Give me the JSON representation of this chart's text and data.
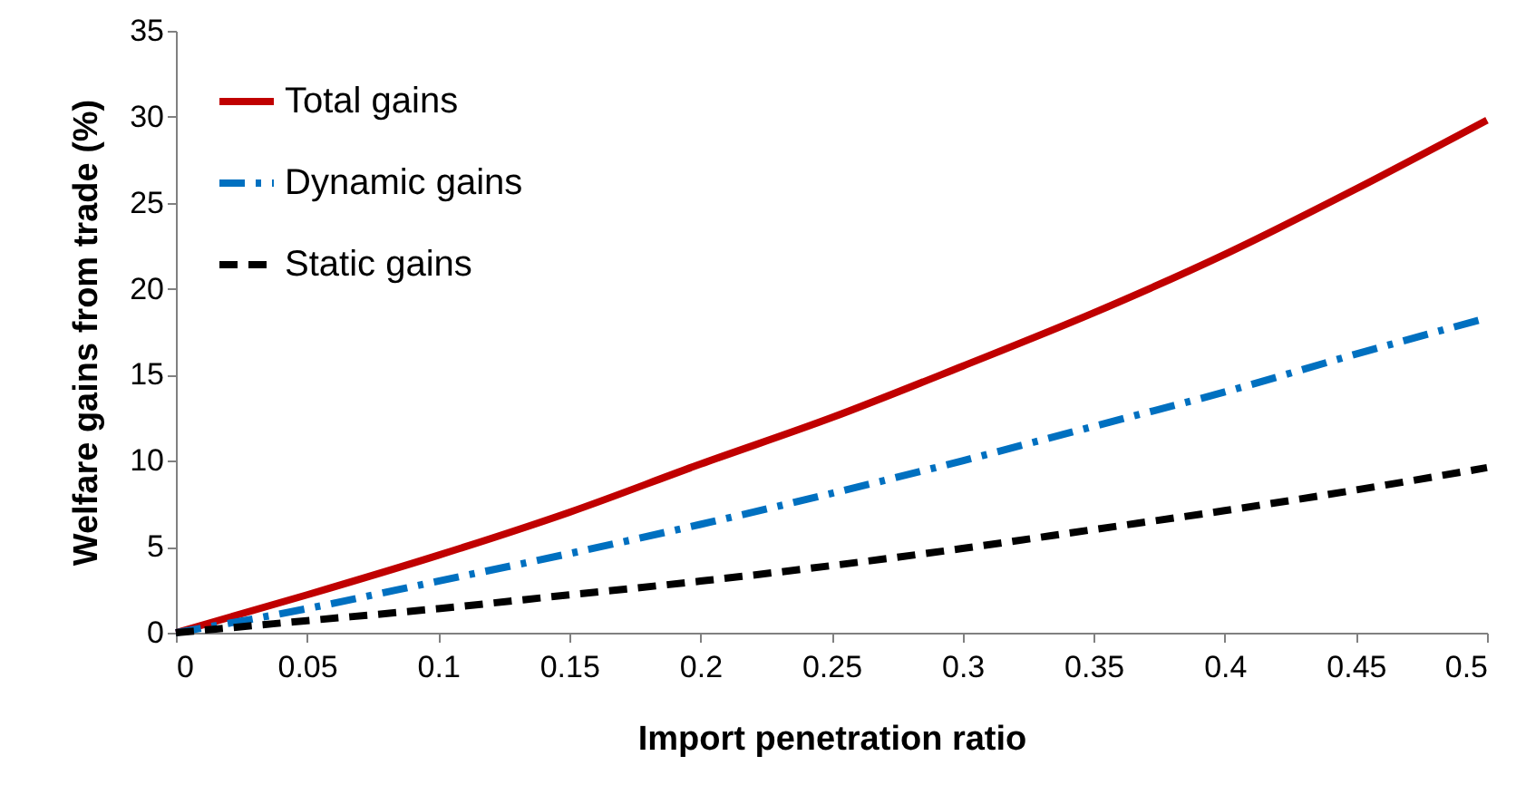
{
  "chart_data": {
    "type": "line",
    "xlabel": "Import penetration ratio",
    "ylabel": "Welfare gains from trade (%)",
    "x": [
      0,
      0.05,
      0.1,
      0.15,
      0.2,
      0.25,
      0.3,
      0.35,
      0.4,
      0.45,
      0.5
    ],
    "series": [
      {
        "name": "Total gains",
        "color": "#c00000",
        "line_style": "solid",
        "values": [
          0,
          2.2,
          4.5,
          7,
          9.8,
          12.5,
          15.5,
          18.6,
          22,
          25.8,
          29.8
        ]
      },
      {
        "name": "Dynamic gains",
        "color": "#0070c0",
        "line_style": "dashdot",
        "values": [
          0,
          1.4,
          3,
          4.6,
          6.3,
          8.1,
          10,
          12,
          14,
          16.2,
          18.3
        ]
      },
      {
        "name": "Static gains",
        "color": "#000000",
        "line_style": "dashed",
        "values": [
          0,
          0.7,
          1.4,
          2.2,
          3,
          3.9,
          4.9,
          6,
          7.1,
          8.3,
          9.6
        ]
      }
    ],
    "xlim": [
      0,
      0.5
    ],
    "xticks": [
      0,
      0.05,
      0.1,
      0.15,
      0.2,
      0.25,
      0.3,
      0.35,
      0.4,
      0.45,
      0.5
    ],
    "ylim": [
      0,
      35
    ],
    "yticks": [
      0,
      5,
      10,
      15,
      20,
      25,
      30,
      35
    ],
    "grid": false,
    "legend": "top left",
    "marker": "none"
  }
}
